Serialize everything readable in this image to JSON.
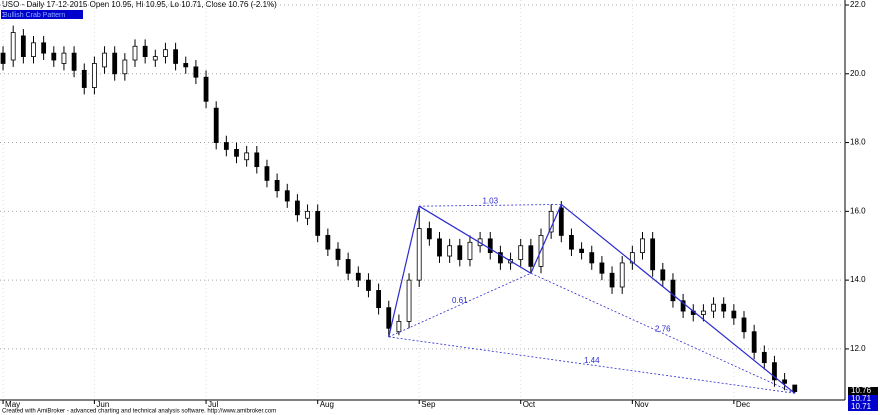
{
  "chart_data": {
    "type": "candlestick",
    "title": "USO - Daily 17-12-2015 Open 10.95, Hi 10.95, Lo 10.71, Close 10.76 (-2.1%)",
    "subtitle": "Bullish Crab Pattern",
    "footer": "Created with AmiBroker - advanced charting and technical analysis software. http://www.amibroker.com",
    "open": [
      20.6,
      20.4,
      21.1,
      20.5,
      20.9,
      20.6,
      20.3,
      20.6,
      20.1,
      19.6,
      20.2,
      20.6,
      20.0,
      20.4,
      20.8,
      20.4,
      20.5,
      20.7,
      20.3,
      20.2,
      19.9,
      19.0,
      18.0,
      17.8,
      17.5,
      17.7,
      17.3,
      16.9,
      16.6,
      16.3,
      15.8,
      16.0,
      15.3,
      14.9,
      14.6,
      14.2,
      14.0,
      13.7,
      13.2,
      12.5,
      12.8,
      14.0,
      15.5,
      15.2,
      14.7,
      15.0,
      14.6,
      15.0,
      15.2,
      14.8,
      14.5,
      14.6,
      15.0,
      14.4,
      15.4,
      16.1,
      15.3,
      14.9,
      14.8,
      14.5,
      14.2,
      13.8,
      14.5,
      14.8,
      15.2,
      14.3,
      14.0,
      13.4,
      13.1,
      13.0,
      13.1,
      13.3,
      13.1,
      12.9,
      12.5,
      11.9,
      11.6,
      11.1,
      10.95
    ],
    "high": [
      20.8,
      21.4,
      21.3,
      21.1,
      21.1,
      20.8,
      20.8,
      20.8,
      20.3,
      20.5,
      20.8,
      20.8,
      20.6,
      21.0,
      21.0,
      20.7,
      20.9,
      20.9,
      20.5,
      20.4,
      20.1,
      19.2,
      18.2,
      18.0,
      17.9,
      17.9,
      17.5,
      17.1,
      16.8,
      16.5,
      16.2,
      16.2,
      15.5,
      15.1,
      14.8,
      14.4,
      14.2,
      13.9,
      13.4,
      13.0,
      14.2,
      16.1,
      15.7,
      15.4,
      15.2,
      15.2,
      15.3,
      15.4,
      15.4,
      15.0,
      14.8,
      15.2,
      15.2,
      15.5,
      16.2,
      16.3,
      15.5,
      15.1,
      15.0,
      14.7,
      14.4,
      14.7,
      15.0,
      15.4,
      15.4,
      14.5,
      14.2,
      13.6,
      13.3,
      13.3,
      13.5,
      13.5,
      13.3,
      13.1,
      12.7,
      12.1,
      11.8,
      11.3,
      10.95
    ],
    "low": [
      20.1,
      20.2,
      20.3,
      20.3,
      20.4,
      20.2,
      20.1,
      19.9,
      19.4,
      19.4,
      20.0,
      19.8,
      19.8,
      20.2,
      20.3,
      20.2,
      20.3,
      20.1,
      20.0,
      19.7,
      19.0,
      17.8,
      17.6,
      17.4,
      17.3,
      17.1,
      16.7,
      16.4,
      16.1,
      15.7,
      15.6,
      15.1,
      14.7,
      14.4,
      14.0,
      13.8,
      13.5,
      13.0,
      12.35,
      12.4,
      12.6,
      13.8,
      15.0,
      14.5,
      14.5,
      14.4,
      14.4,
      14.8,
      14.6,
      14.3,
      14.3,
      14.4,
      14.2,
      14.2,
      15.2,
      15.1,
      14.7,
      14.6,
      14.3,
      14.0,
      13.6,
      13.6,
      14.3,
      14.6,
      14.1,
      13.8,
      13.2,
      12.9,
      12.8,
      12.8,
      12.9,
      12.9,
      12.7,
      12.3,
      11.7,
      11.4,
      10.9,
      10.8,
      10.71
    ],
    "close": [
      20.3,
      21.2,
      20.5,
      20.9,
      20.6,
      20.4,
      20.6,
      20.1,
      19.6,
      20.3,
      20.6,
      20.0,
      20.4,
      20.8,
      20.5,
      20.5,
      20.7,
      20.3,
      20.2,
      19.9,
      19.2,
      18.0,
      17.8,
      17.6,
      17.7,
      17.3,
      16.9,
      16.6,
      16.3,
      15.9,
      16.0,
      15.3,
      14.9,
      14.6,
      14.2,
      14.0,
      13.7,
      13.2,
      12.6,
      12.8,
      14.0,
      15.5,
      15.2,
      14.7,
      15.0,
      14.6,
      15.1,
      15.2,
      14.8,
      14.5,
      14.6,
      15.0,
      14.4,
      15.3,
      16.0,
      15.3,
      14.9,
      14.8,
      14.5,
      14.2,
      13.8,
      14.5,
      14.8,
      15.2,
      14.3,
      14.0,
      13.4,
      13.1,
      13.0,
      13.1,
      13.3,
      13.1,
      12.9,
      12.5,
      11.9,
      11.6,
      11.1,
      11.0,
      10.76
    ],
    "xlim": [
      -0.3,
      82.95
    ],
    "xticks": [
      {
        "value": 0,
        "label": "May"
      },
      {
        "value": 9,
        "label": "Jun"
      },
      {
        "value": 20,
        "label": "Jul"
      },
      {
        "value": 31,
        "label": "Aug"
      },
      {
        "value": 41,
        "label": "Sep"
      },
      {
        "value": 51,
        "label": "Oct"
      },
      {
        "value": 62,
        "label": "Nov"
      },
      {
        "value": 72,
        "label": "Dec"
      }
    ],
    "ylim": [
      10.66,
      22.145
    ],
    "yticks": [
      {
        "value": 12,
        "label": "12.0"
      },
      {
        "value": 14,
        "label": "14.0"
      },
      {
        "value": 16,
        "label": "16.0"
      },
      {
        "value": 18,
        "label": "18.0"
      },
      {
        "value": 20,
        "label": "20.0"
      },
      {
        "value": 22,
        "label": "22.0"
      }
    ],
    "grid": true,
    "up_color": "#ffffff",
    "down_color": "#000000",
    "pattern": {
      "color": "#2a2ad0",
      "points": [
        {
          "x": 38,
          "y": 12.35
        },
        {
          "x": 41,
          "y": 16.15
        },
        {
          "x": 52,
          "y": 14.2
        },
        {
          "x": 55,
          "y": 16.2
        },
        {
          "x": 78,
          "y": 10.71
        }
      ],
      "ratios": [
        {
          "label": "1.03",
          "from": 1,
          "to": 3
        },
        {
          "label": "0.61",
          "from": 0,
          "to": 2
        },
        {
          "label": "2.76",
          "from": 2,
          "to": 4
        },
        {
          "label": "1.44",
          "from": 0,
          "to": 4
        }
      ]
    },
    "price_tags": [
      10.76,
      10.71,
      10.71
    ],
    "price_tag_colors": [
      "#000000",
      "#0000cc",
      "#0000cc"
    ]
  }
}
